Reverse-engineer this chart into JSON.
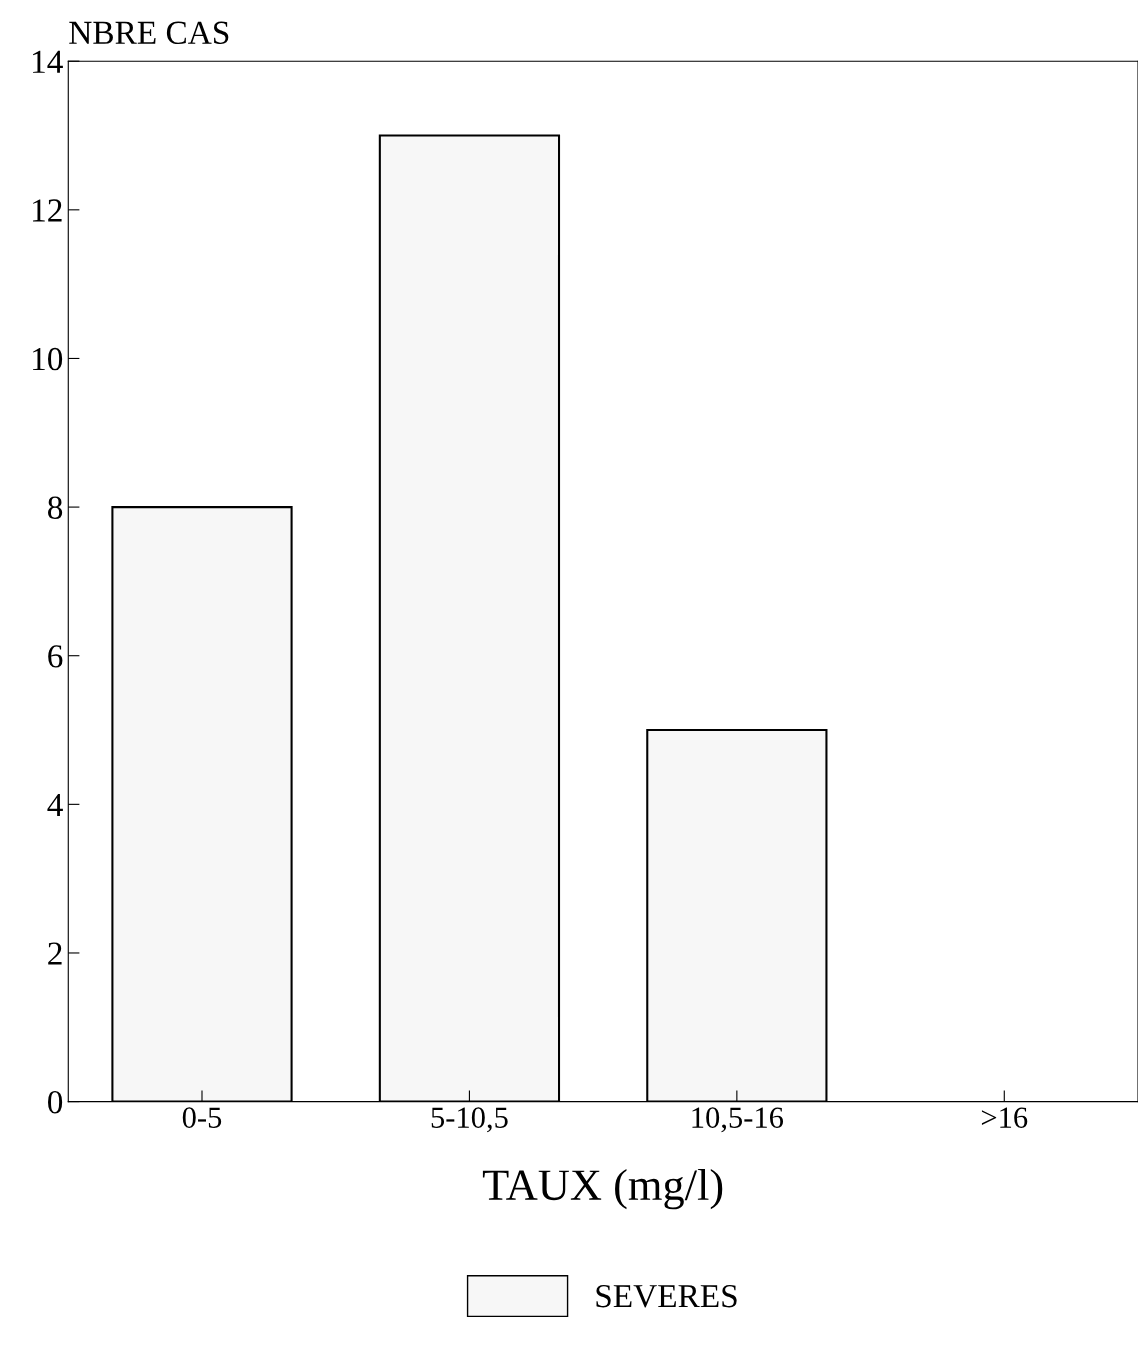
{
  "chart_data": {
    "type": "bar",
    "ylabel": "NBRE CAS",
    "xlabel": "TAUX (mg/l)",
    "categories": [
      "0-5",
      "5-10,5",
      "10,5-16",
      ">16"
    ],
    "series": [
      {
        "name": "SEVERES",
        "color": "#f7f7f7",
        "values": [
          8,
          13,
          5,
          0
        ]
      }
    ],
    "ylim": [
      0,
      14
    ],
    "yticks": [
      0,
      2,
      4,
      6,
      8,
      10,
      12,
      14
    ],
    "grid": false,
    "legend": "bottom"
  }
}
